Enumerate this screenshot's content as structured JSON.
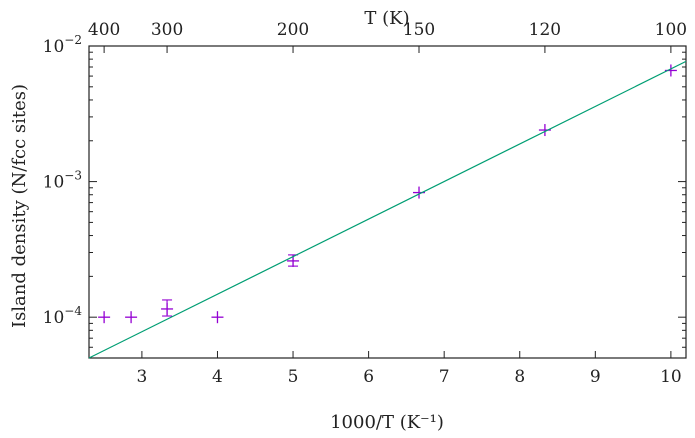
{
  "chart_data": {
    "type": "scatter",
    "title": "",
    "xlabel": "1000/T (K⁻¹)",
    "x2label": "T (K)",
    "ylabel": "Island density (N/fcc sites)",
    "xlim": [
      2.3,
      10.2
    ],
    "ylim": [
      5e-05,
      0.01
    ],
    "yscale": "log",
    "grid": false,
    "legend": "none",
    "xticks": [
      3,
      4,
      5,
      6,
      7,
      8,
      9,
      10
    ],
    "x2ticks": [
      {
        "label": "400",
        "at": 2.5
      },
      {
        "label": "300",
        "at": 3.333
      },
      {
        "label": "200",
        "at": 5.0
      },
      {
        "label": "150",
        "at": 6.667
      },
      {
        "label": "120",
        "at": 8.333
      },
      {
        "label": "100",
        "at": 10.0
      }
    ],
    "yticks": [
      {
        "value": 0.0001,
        "mantissa": "10",
        "exponent": "−4"
      },
      {
        "value": 0.001,
        "mantissa": "10",
        "exponent": "−3"
      },
      {
        "value": 0.01,
        "mantissa": "10",
        "exponent": "−2"
      }
    ],
    "series": [
      {
        "kind": "points",
        "color": "#9400d3",
        "points": [
          {
            "x": 2.5,
            "y": 0.0001
          },
          {
            "x": 2.857,
            "y": 0.0001
          },
          {
            "x": 3.333,
            "y": 0.000115,
            "ylo": 0.000102,
            "yhi": 0.000134
          },
          {
            "x": 4.0,
            "y": 0.0001
          },
          {
            "x": 5.0,
            "y": 0.00026,
            "ylo": 0.000238,
            "yhi": 0.000288
          },
          {
            "x": 6.667,
            "y": 0.00083
          },
          {
            "x": 8.333,
            "y": 0.0024
          },
          {
            "x": 10.0,
            "y": 0.0066
          }
        ]
      },
      {
        "kind": "fit-line",
        "color": "#009e73",
        "x": [
          2.3,
          10.2
        ],
        "y": [
          5e-05,
          0.0077
        ]
      }
    ]
  }
}
